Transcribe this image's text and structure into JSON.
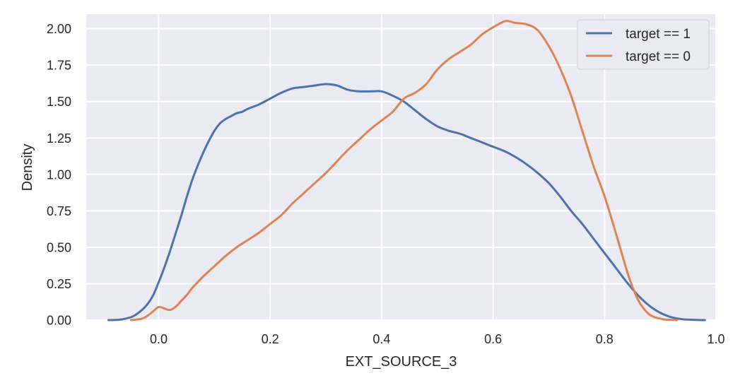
{
  "chart_data": {
    "type": "line",
    "xlabel": "EXT_SOURCE_3",
    "ylabel": "Density",
    "xlim": [
      -0.13,
      1.0
    ],
    "ylim": [
      0.0,
      2.1
    ],
    "xticks": [
      {
        "value": 0.0,
        "label": "0.0"
      },
      {
        "value": 0.2,
        "label": "0.2"
      },
      {
        "value": 0.4,
        "label": "0.4"
      },
      {
        "value": 0.6,
        "label": "0.6"
      },
      {
        "value": 0.8,
        "label": "0.8"
      },
      {
        "value": 1.0,
        "label": "1.0"
      }
    ],
    "yticks": [
      {
        "value": 0.0,
        "label": "0.00"
      },
      {
        "value": 0.25,
        "label": "0.25"
      },
      {
        "value": 0.5,
        "label": "0.50"
      },
      {
        "value": 0.75,
        "label": "0.75"
      },
      {
        "value": 1.0,
        "label": "1.00"
      },
      {
        "value": 1.25,
        "label": "1.25"
      },
      {
        "value": 1.5,
        "label": "1.50"
      },
      {
        "value": 1.75,
        "label": "1.75"
      },
      {
        "value": 2.0,
        "label": "2.00"
      }
    ],
    "grid": true,
    "legend_position": "top-right",
    "series": [
      {
        "name": "target == 1",
        "color": "#4c72b0",
        "x": [
          -0.09,
          -0.07,
          -0.05,
          -0.04,
          -0.03,
          -0.02,
          -0.01,
          0.0,
          0.01,
          0.02,
          0.03,
          0.04,
          0.05,
          0.06,
          0.07,
          0.08,
          0.09,
          0.1,
          0.11,
          0.12,
          0.13,
          0.14,
          0.15,
          0.16,
          0.18,
          0.2,
          0.22,
          0.24,
          0.26,
          0.28,
          0.3,
          0.32,
          0.34,
          0.36,
          0.38,
          0.4,
          0.42,
          0.44,
          0.46,
          0.48,
          0.5,
          0.52,
          0.54,
          0.56,
          0.58,
          0.6,
          0.62,
          0.64,
          0.66,
          0.68,
          0.7,
          0.72,
          0.74,
          0.76,
          0.78,
          0.8,
          0.82,
          0.84,
          0.86,
          0.88,
          0.9,
          0.92,
          0.94,
          0.96,
          0.98
        ],
        "y": [
          0.0,
          0.003,
          0.02,
          0.04,
          0.07,
          0.11,
          0.17,
          0.26,
          0.36,
          0.47,
          0.59,
          0.71,
          0.84,
          0.96,
          1.06,
          1.15,
          1.23,
          1.3,
          1.35,
          1.38,
          1.4,
          1.42,
          1.43,
          1.45,
          1.48,
          1.52,
          1.56,
          1.59,
          1.6,
          1.61,
          1.62,
          1.61,
          1.58,
          1.57,
          1.57,
          1.57,
          1.54,
          1.5,
          1.44,
          1.38,
          1.33,
          1.3,
          1.28,
          1.25,
          1.22,
          1.19,
          1.16,
          1.12,
          1.07,
          1.01,
          0.94,
          0.85,
          0.75,
          0.66,
          0.56,
          0.46,
          0.36,
          0.26,
          0.17,
          0.1,
          0.05,
          0.02,
          0.006,
          0.002,
          0.0
        ]
      },
      {
        "name": "target == 0",
        "color": "#dd8452",
        "x": [
          -0.05,
          -0.03,
          -0.02,
          -0.01,
          0.0,
          0.01,
          0.02,
          0.03,
          0.04,
          0.05,
          0.06,
          0.07,
          0.08,
          0.1,
          0.12,
          0.14,
          0.16,
          0.18,
          0.2,
          0.22,
          0.24,
          0.26,
          0.28,
          0.3,
          0.32,
          0.34,
          0.36,
          0.38,
          0.4,
          0.42,
          0.44,
          0.46,
          0.48,
          0.5,
          0.52,
          0.54,
          0.56,
          0.58,
          0.6,
          0.62,
          0.63,
          0.64,
          0.66,
          0.68,
          0.7,
          0.72,
          0.74,
          0.76,
          0.78,
          0.8,
          0.82,
          0.84,
          0.85,
          0.86,
          0.87,
          0.88,
          0.89,
          0.9,
          0.91,
          0.93
        ],
        "y": [
          0.0,
          0.01,
          0.03,
          0.06,
          0.09,
          0.08,
          0.07,
          0.09,
          0.13,
          0.17,
          0.22,
          0.26,
          0.3,
          0.37,
          0.44,
          0.5,
          0.55,
          0.6,
          0.66,
          0.72,
          0.8,
          0.87,
          0.94,
          1.01,
          1.09,
          1.17,
          1.24,
          1.31,
          1.37,
          1.43,
          1.52,
          1.56,
          1.62,
          1.72,
          1.79,
          1.84,
          1.89,
          1.96,
          2.01,
          2.05,
          2.05,
          2.04,
          2.03,
          1.99,
          1.88,
          1.73,
          1.54,
          1.3,
          1.06,
          0.85,
          0.6,
          0.34,
          0.23,
          0.14,
          0.08,
          0.04,
          0.02,
          0.01,
          0.003,
          0.0
        ]
      }
    ]
  }
}
